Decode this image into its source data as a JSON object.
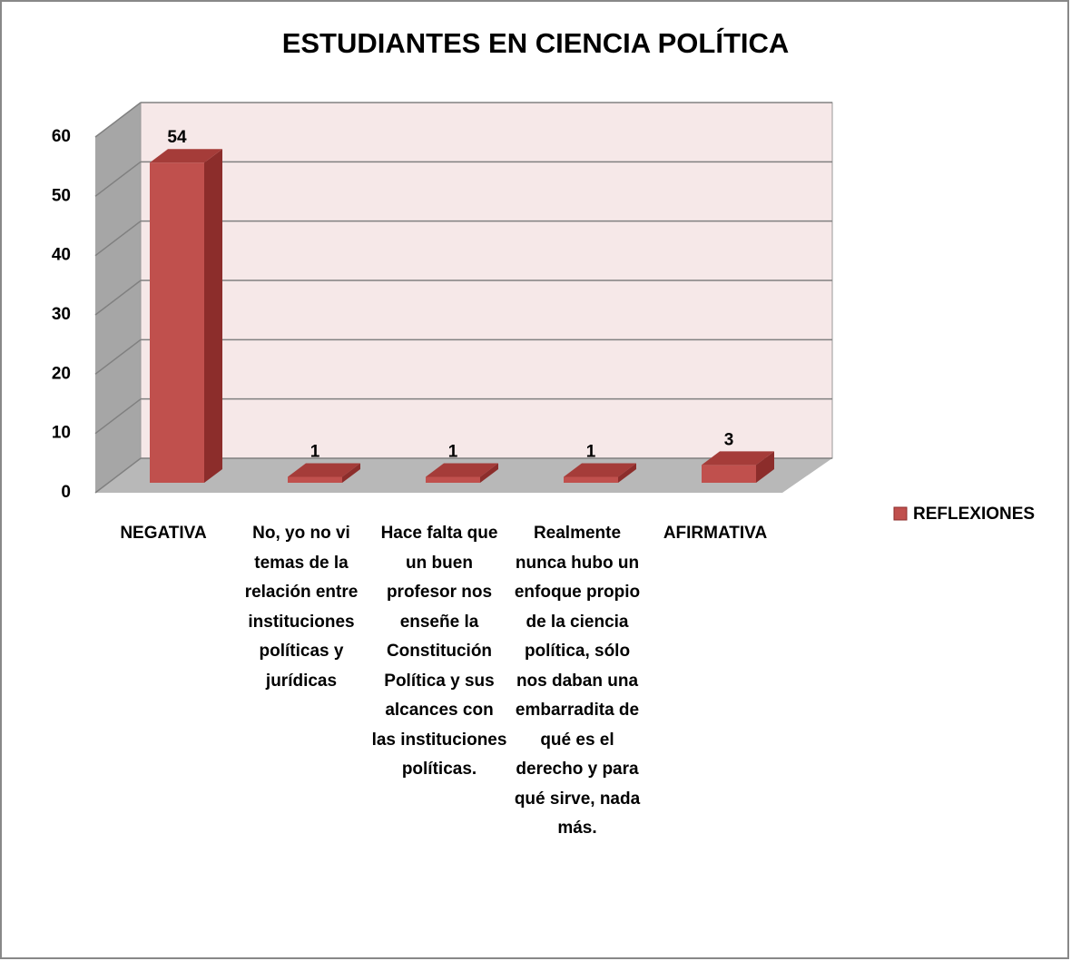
{
  "chart_data": {
    "type": "bar3d",
    "title": "ESTUDIANTES EN CIENCIA POLÍTICA",
    "categories": [
      "NEGATIVA",
      "No, yo no vi temas de la relación entre instituciones políticas y jurídicas",
      "Hace falta que un buen profesor nos enseñe la Constitución Política y sus alcances con las instituciones políticas.",
      "Realmente nunca hubo un enfoque propio de la ciencia política, sólo nos daban una embarradita de qué es el derecho y para qué sirve, nada más.",
      "AFIRMATIVA"
    ],
    "series": [
      {
        "name": "REFLEXIONES",
        "color": "#c0504d",
        "values": [
          54,
          1,
          1,
          1,
          3
        ]
      }
    ],
    "ylim": [
      0,
      60
    ],
    "yticks": [
      0,
      10,
      20,
      30,
      40,
      50,
      60
    ],
    "grid": true,
    "legend": "right"
  }
}
